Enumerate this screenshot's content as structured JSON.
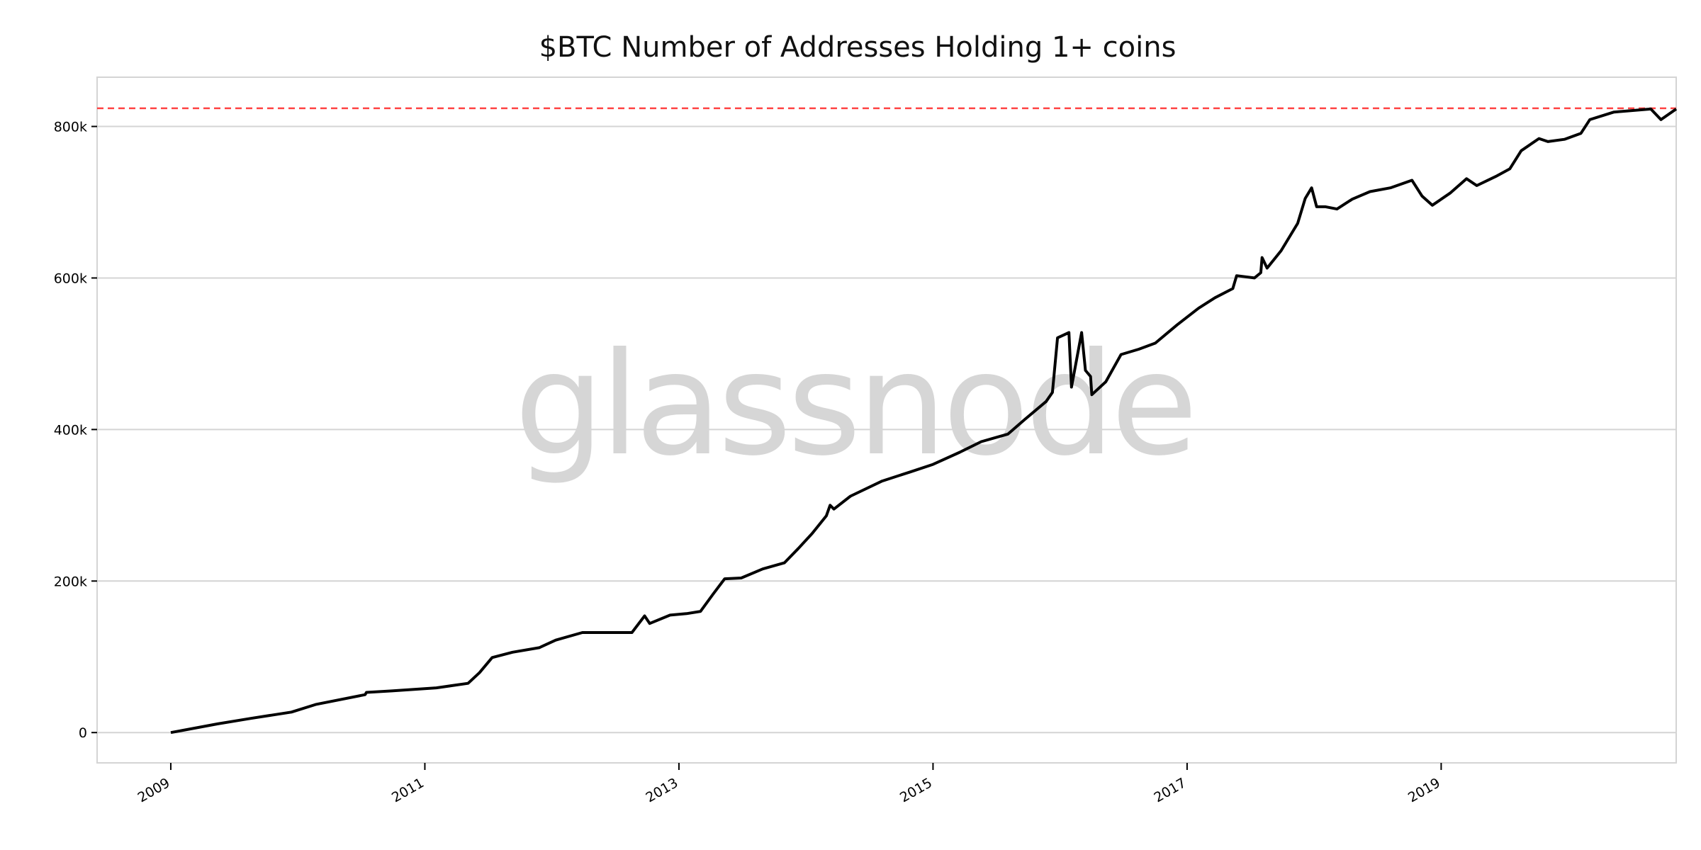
{
  "chart_data": {
    "type": "line",
    "title": "$BTC Number of Addresses Holding 1+ coins",
    "xlabel": "",
    "ylabel": "",
    "xlim": [
      2008.42,
      2020.85
    ],
    "ylim": [
      -40000,
      865000
    ],
    "grid": "horizontal",
    "watermark": "glassnode",
    "x_ticks": [
      {
        "value": 2009,
        "label": "2009"
      },
      {
        "value": 2011,
        "label": "2011"
      },
      {
        "value": 2013,
        "label": "2013"
      },
      {
        "value": 2015,
        "label": "2015"
      },
      {
        "value": 2017,
        "label": "2017"
      },
      {
        "value": 2019,
        "label": "2019"
      }
    ],
    "y_ticks": [
      {
        "value": 0,
        "label": "0"
      },
      {
        "value": 200000,
        "label": "200k"
      },
      {
        "value": 400000,
        "label": "400k"
      },
      {
        "value": 600000,
        "label": "600k"
      },
      {
        "value": 800000,
        "label": "800k"
      }
    ],
    "reference_line": {
      "value": 824000,
      "color": "#ff4444",
      "style": "dashed"
    },
    "series": [
      {
        "color": "#000000",
        "x": [
          2009.0,
          2009.37,
          2009.63,
          2009.95,
          2010.14,
          2010.53,
          2010.54,
          2010.74,
          2011.09,
          2011.34,
          2011.43,
          2011.53,
          2011.69,
          2011.9,
          2012.03,
          2012.24,
          2012.37,
          2012.63,
          2012.73,
          2012.77,
          2012.93,
          2013.06,
          2013.17,
          2013.27,
          2013.36,
          2013.49,
          2013.66,
          2013.83,
          2013.94,
          2014.05,
          2014.16,
          2014.19,
          2014.22,
          2014.35,
          2014.6,
          2014.82,
          2015.0,
          2015.21,
          2015.38,
          2015.59,
          2015.72,
          2015.89,
          2015.94,
          2015.98,
          2016.07,
          2016.09,
          2016.17,
          2016.2,
          2016.24,
          2016.25,
          2016.36,
          2016.48,
          2016.62,
          2016.75,
          2016.92,
          2017.09,
          2017.22,
          2017.36,
          2017.39,
          2017.53,
          2017.58,
          2017.59,
          2017.63,
          2017.74,
          2017.87,
          2017.93,
          2017.98,
          2018.02,
          2018.09,
          2018.18,
          2018.3,
          2018.44,
          2018.6,
          2018.77,
          2018.85,
          2018.93,
          2019.07,
          2019.2,
          2019.28,
          2019.43,
          2019.54,
          2019.63,
          2019.77,
          2019.84,
          2019.97,
          2020.1,
          2020.17,
          2020.36,
          2020.65,
          2020.73,
          2020.85
        ],
        "y": [
          0,
          11500,
          18700,
          27000,
          37000,
          50000,
          53000,
          55000,
          59000,
          65000,
          79000,
          99000,
          106000,
          112000,
          122000,
          132000,
          132000,
          132000,
          154000,
          144000,
          155000,
          157000,
          160000,
          183000,
          203000,
          204000,
          216000,
          224000,
          243000,
          263000,
          286000,
          300000,
          295000,
          312000,
          332000,
          344000,
          354000,
          370000,
          384000,
          394000,
          413000,
          437000,
          449000,
          521000,
          528000,
          456000,
          528000,
          478000,
          470000,
          446000,
          463000,
          499000,
          506000,
          514000,
          538000,
          560000,
          574000,
          586000,
          603000,
          600000,
          607000,
          627000,
          613000,
          636000,
          672000,
          705000,
          719000,
          694000,
          694000,
          691000,
          704000,
          714000,
          719000,
          729000,
          708000,
          696000,
          712000,
          731000,
          722000,
          734000,
          744000,
          768000,
          784000,
          780000,
          783000,
          791000,
          809000,
          819000,
          823000,
          809000,
          823000
        ]
      }
    ]
  }
}
